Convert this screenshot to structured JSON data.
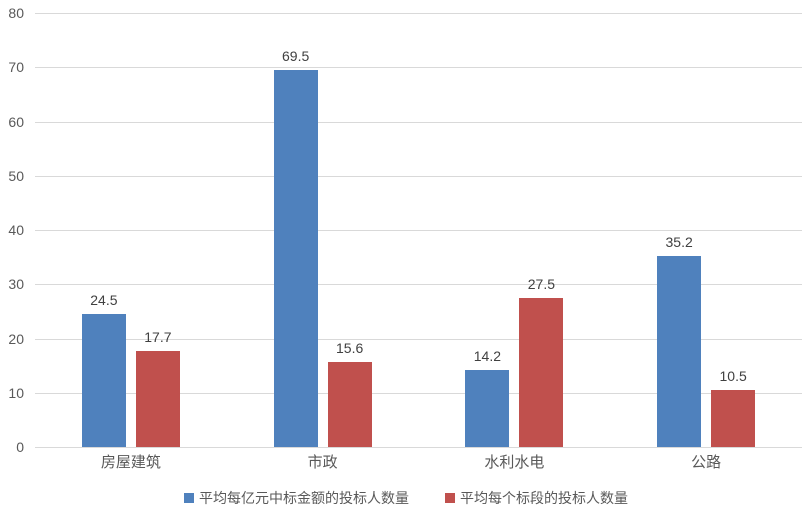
{
  "chart_data": {
    "type": "bar",
    "categories": [
      "房屋建筑",
      "市政",
      "水利水电",
      "公路"
    ],
    "series": [
      {
        "name": "平均每亿元中标金额的投标人数量",
        "color": "#4F81BD",
        "values": [
          24.5,
          69.5,
          14.2,
          35.2
        ]
      },
      {
        "name": "平均每个标段的投标人数量",
        "color": "#C0504D",
        "values": [
          17.7,
          15.6,
          27.5,
          10.5
        ]
      }
    ],
    "title": "",
    "xlabel": "",
    "ylabel": "",
    "ylim": [
      0,
      80
    ],
    "yticks": [
      0,
      10,
      20,
      30,
      40,
      50,
      60,
      70,
      80
    ],
    "grid": true,
    "data_labels": true,
    "legend_position": "bottom"
  },
  "colors": {
    "background": "#ffffff",
    "gridline": "#d9d9d9",
    "axis_text": "#595959",
    "value_label_text": "#404040"
  }
}
